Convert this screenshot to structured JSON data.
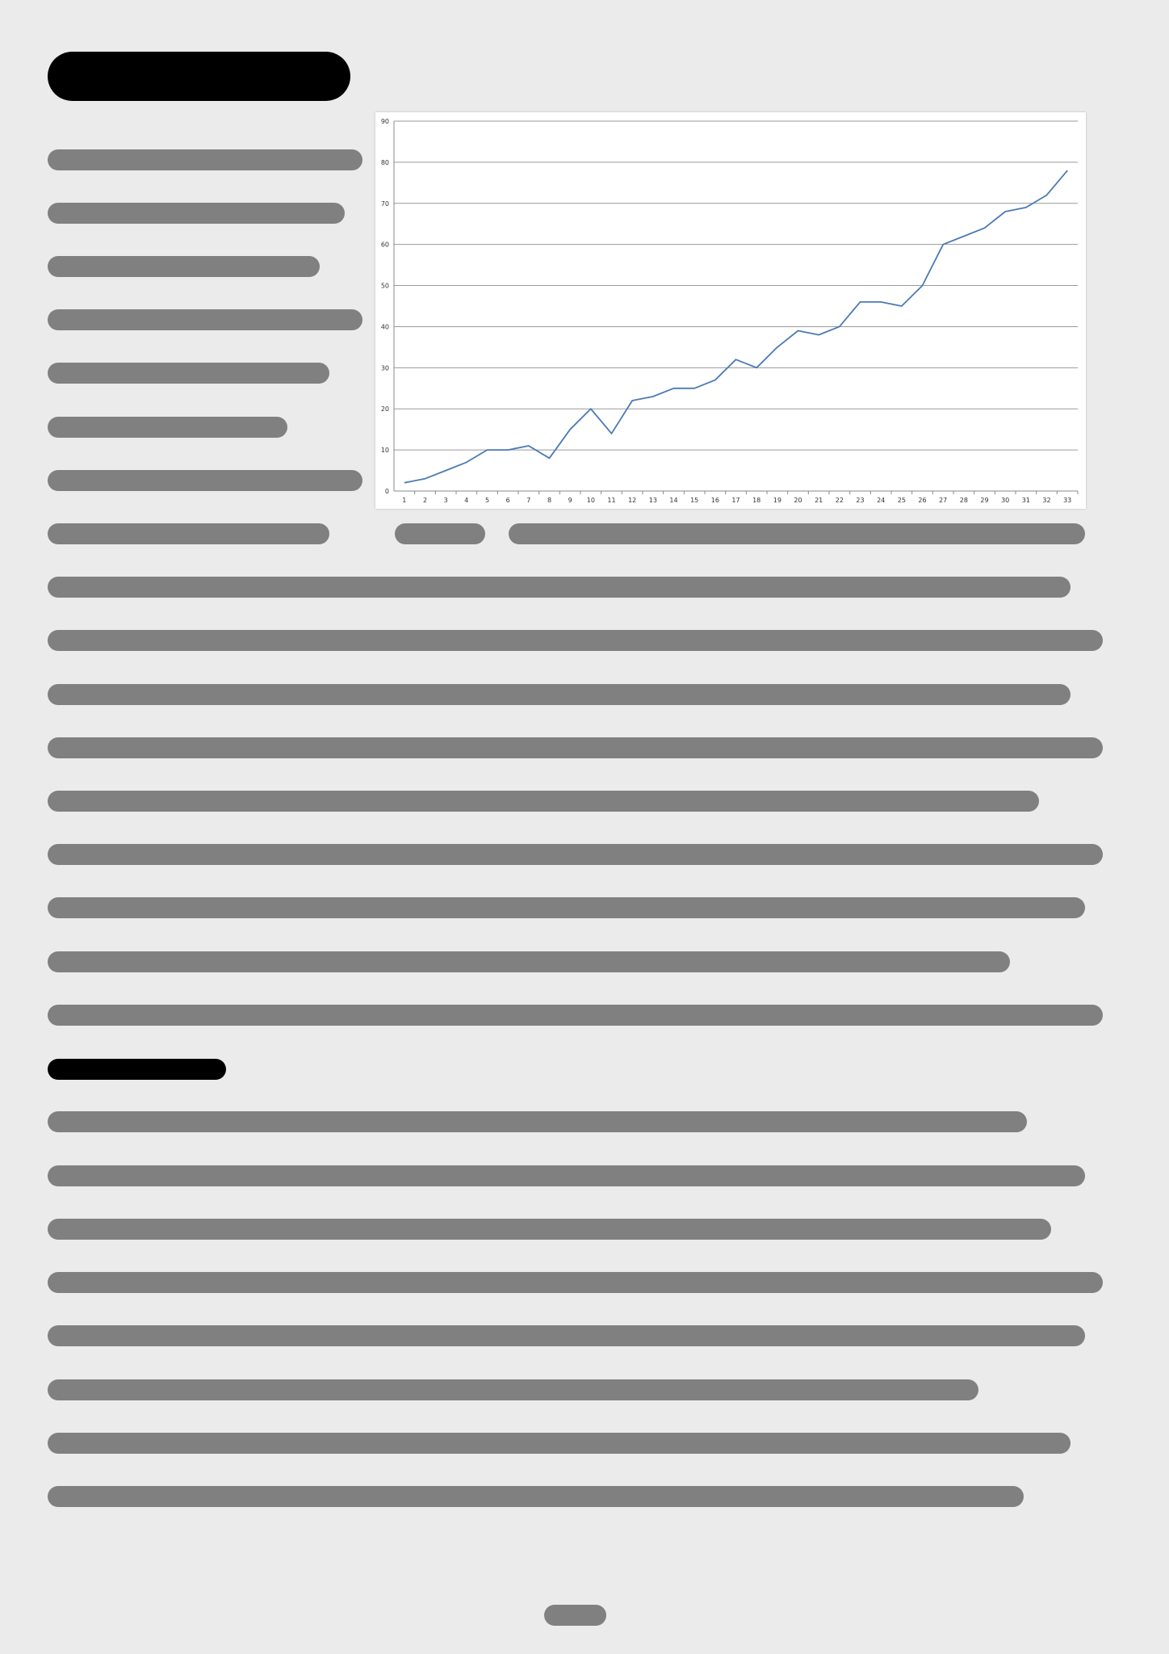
{
  "document": {
    "title_bar_color": "#000000",
    "text_bar_color": "#808080",
    "background": "#ebebeb"
  },
  "chart_data": {
    "type": "line",
    "x": [
      1,
      2,
      3,
      4,
      5,
      6,
      7,
      8,
      9,
      10,
      11,
      12,
      13,
      14,
      15,
      16,
      17,
      18,
      19,
      20,
      21,
      22,
      23,
      24,
      25,
      26,
      27,
      28,
      29,
      30,
      31,
      32,
      33
    ],
    "series": [
      {
        "values": [
          2,
          3,
          5,
          7,
          10,
          10,
          11,
          8,
          15,
          20,
          14,
          22,
          23,
          25,
          25,
          27,
          32,
          30,
          35,
          39,
          38,
          40,
          46,
          46,
          45,
          50,
          60,
          62,
          64,
          68,
          69,
          72,
          78
        ],
        "color": "#4a7ab5"
      }
    ],
    "y_ticks": [
      0,
      10,
      20,
      30,
      40,
      50,
      60,
      70,
      80,
      90
    ],
    "ylim": [
      0,
      90
    ],
    "grid": true,
    "legend": "none"
  }
}
